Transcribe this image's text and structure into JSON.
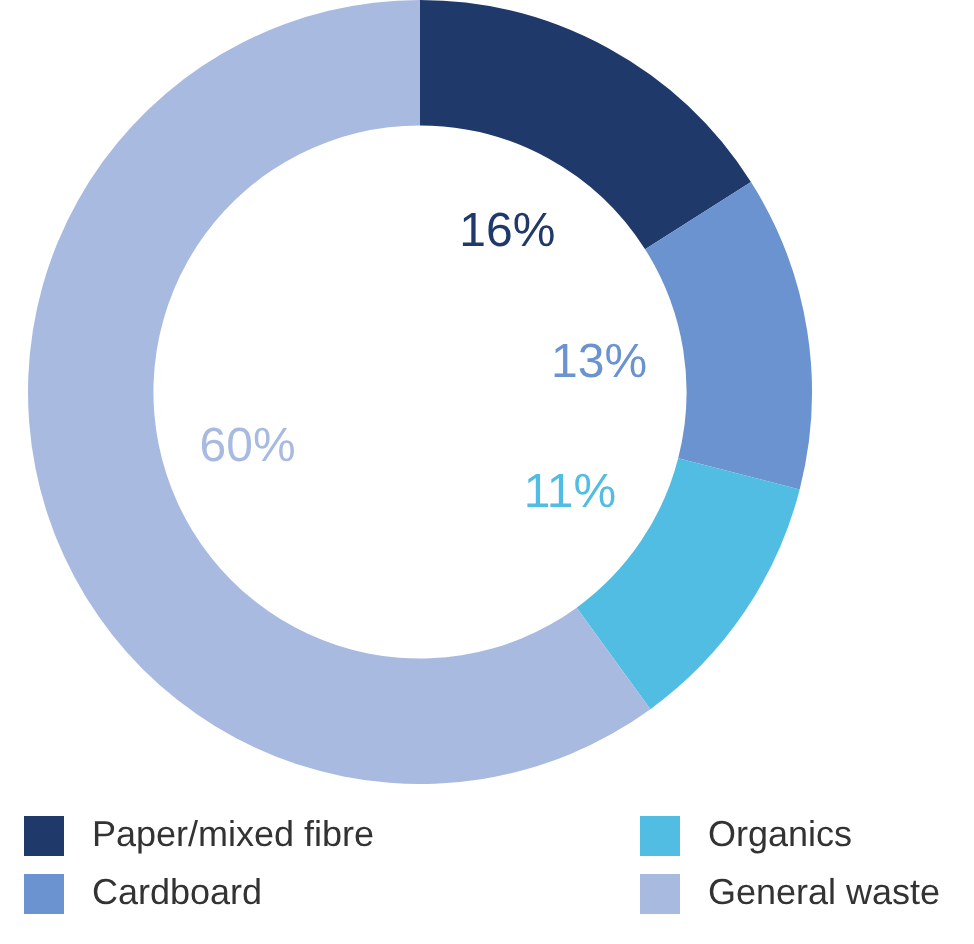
{
  "chart_data": {
    "type": "donut",
    "categories": [
      "Paper/mixed fibre",
      "Cardboard",
      "Organics",
      "General waste"
    ],
    "values": [
      16,
      13,
      11,
      60
    ],
    "colors": [
      "#1f3a6a",
      "#6a93cf",
      "#52bde2",
      "#a9bae0"
    ],
    "value_labels": [
      "16%",
      "13%",
      "11%",
      "60%"
    ],
    "legend": "bottom"
  }
}
